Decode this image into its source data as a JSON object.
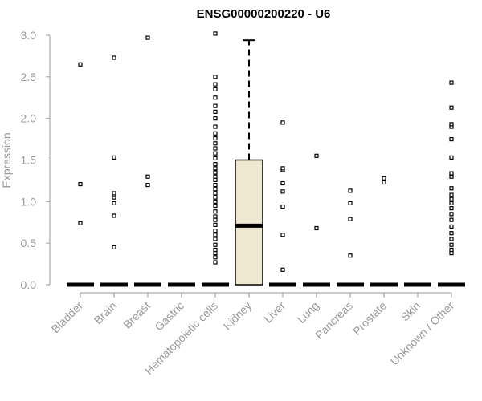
{
  "chart_data": {
    "type": "box",
    "title": "ENSG00000200220 - U6",
    "xlabel": "",
    "ylabel": "Expression",
    "ylim": [
      0,
      3.0
    ],
    "yticks": [
      0.0,
      0.5,
      1.0,
      1.5,
      2.0,
      2.5,
      3.0
    ],
    "ytick_labels": [
      "0.0",
      "0.5",
      "1.0",
      "1.5",
      "2.0",
      "2.5",
      "3.0"
    ],
    "grid": false,
    "box_fill": "#EFE8D0",
    "categories": [
      "Bladder",
      "Brain",
      "Breast",
      "Gastric",
      "Hematopoietic cells",
      "Kidney",
      "Liver",
      "Lung",
      "Pancreas",
      "Prostate",
      "Skin",
      "Unknown / Other"
    ],
    "boxes": [
      {
        "category": "Bladder",
        "min": 0,
        "q1": 0,
        "median": 0,
        "q3": 0,
        "max": 0,
        "outliers": [
          0.74,
          1.21,
          2.65
        ]
      },
      {
        "category": "Brain",
        "min": 0,
        "q1": 0,
        "median": 0,
        "q3": 0,
        "max": 0,
        "outliers": [
          0.45,
          0.83,
          0.98,
          1.05,
          1.08,
          1.1,
          1.53,
          2.73
        ]
      },
      {
        "category": "Breast",
        "min": 0,
        "q1": 0,
        "median": 0,
        "q3": 0,
        "max": 0,
        "outliers": [
          1.2,
          1.3,
          2.97
        ]
      },
      {
        "category": "Gastric",
        "min": 0,
        "q1": 0,
        "median": 0,
        "q3": 0,
        "max": 0,
        "outliers": []
      },
      {
        "category": "Hematopoietic cells",
        "min": 0,
        "q1": 0,
        "median": 0,
        "q3": 0,
        "max": 0,
        "outliers": [
          0.27,
          0.33,
          0.38,
          0.42,
          0.48,
          0.55,
          0.6,
          0.65,
          0.72,
          0.78,
          0.82,
          0.88,
          0.95,
          1.0,
          1.05,
          1.1,
          1.15,
          1.2,
          1.26,
          1.3,
          1.35,
          1.4,
          1.45,
          1.52,
          1.58,
          1.64,
          1.7,
          1.76,
          1.82,
          1.9,
          2.0,
          2.08,
          2.15,
          2.25,
          2.35,
          2.41,
          2.5,
          3.02
        ]
      },
      {
        "category": "Kidney",
        "min": 0,
        "q1": 0,
        "median": 0.71,
        "q3": 1.5,
        "max": 2.94,
        "outliers": []
      },
      {
        "category": "Liver",
        "min": 0,
        "q1": 0,
        "median": 0,
        "q3": 0,
        "max": 0,
        "outliers": [
          0.18,
          0.6,
          0.94,
          1.12,
          1.22,
          1.38,
          1.4,
          1.95
        ]
      },
      {
        "category": "Lung",
        "min": 0,
        "q1": 0,
        "median": 0,
        "q3": 0,
        "max": 0,
        "outliers": [
          0.68,
          1.55
        ]
      },
      {
        "category": "Pancreas",
        "min": 0,
        "q1": 0,
        "median": 0,
        "q3": 0,
        "max": 0,
        "outliers": [
          0.35,
          0.79,
          0.98,
          1.13
        ]
      },
      {
        "category": "Prostate",
        "min": 0,
        "q1": 0,
        "median": 0,
        "q3": 0,
        "max": 0,
        "outliers": [
          1.23,
          1.28
        ]
      },
      {
        "category": "Skin",
        "min": 0,
        "q1": 0,
        "median": 0,
        "q3": 0,
        "max": 0,
        "outliers": []
      },
      {
        "category": "Unknown / Other",
        "min": 0,
        "q1": 0,
        "median": 0,
        "q3": 0,
        "max": 0,
        "outliers": [
          0.38,
          0.42,
          0.48,
          0.55,
          0.62,
          0.7,
          0.78,
          0.85,
          0.92,
          0.98,
          1.03,
          1.08,
          1.16,
          1.3,
          1.34,
          1.53,
          1.75,
          1.9,
          1.93,
          2.13,
          2.43
        ]
      }
    ]
  }
}
